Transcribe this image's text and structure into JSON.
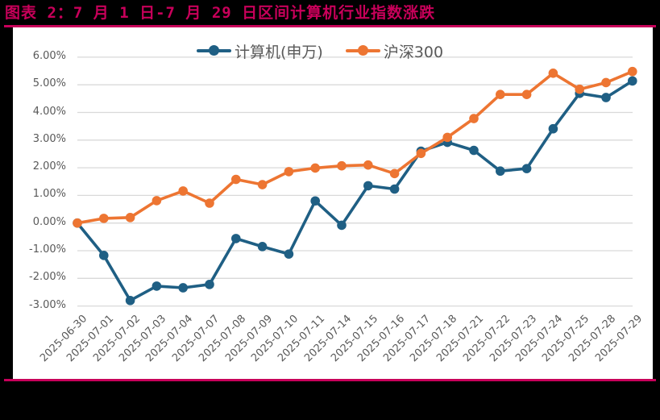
{
  "header": {
    "title": "图表 2：7 月 1 日-7 月 29 日区间计算机行业指数涨跌"
  },
  "colors": {
    "accent": "#c8005a",
    "series_1": "#1f5f84",
    "series_2": "#ed7532",
    "grid": "#d9d9d9",
    "tick_text": "#595959"
  },
  "chart_data": {
    "type": "line",
    "title": "7 月 1 日-7 月 29 日区间计算机行业指数涨跌",
    "xlabel": "",
    "ylabel": "",
    "ylim": [
      -0.03,
      0.06
    ],
    "y_ticks": [
      "6.00%",
      "5.00%",
      "4.00%",
      "3.00%",
      "2.00%",
      "1.00%",
      "0.00%",
      "-1.00%",
      "-2.00%",
      "-3.00%"
    ],
    "grid": true,
    "legend_position": "top",
    "categories": [
      "2025-06-30",
      "2025-07-01",
      "2025-07-02",
      "2025-07-03",
      "2025-07-04",
      "2025-07-07",
      "2025-07-08",
      "2025-07-09",
      "2025-07-10",
      "2025-07-11",
      "2025-07-14",
      "2025-07-15",
      "2025-07-16",
      "2025-07-17",
      "2025-07-18",
      "2025-07-21",
      "2025-07-22",
      "2025-07-23",
      "2025-07-24",
      "2025-07-25",
      "2025-07-28",
      "2025-07-29"
    ],
    "series": [
      {
        "name": "计算机(申万)",
        "color": "#1f5f84",
        "values": [
          0.0,
          -0.0117,
          -0.028,
          -0.0228,
          -0.0234,
          -0.0222,
          -0.0056,
          -0.0085,
          -0.0112,
          0.008,
          -0.0008,
          0.0135,
          0.0123,
          0.026,
          0.0292,
          0.0263,
          0.0188,
          0.0197,
          0.0341,
          0.0469,
          0.0454,
          0.0514
        ]
      },
      {
        "name": "沪深300",
        "color": "#ed7532",
        "values": [
          0.0,
          0.0017,
          0.002,
          0.0081,
          0.0116,
          0.0072,
          0.0158,
          0.0139,
          0.0186,
          0.0199,
          0.0207,
          0.021,
          0.0179,
          0.0252,
          0.031,
          0.0378,
          0.0465,
          0.0465,
          0.0542,
          0.0484,
          0.0508,
          0.0548
        ]
      }
    ]
  }
}
